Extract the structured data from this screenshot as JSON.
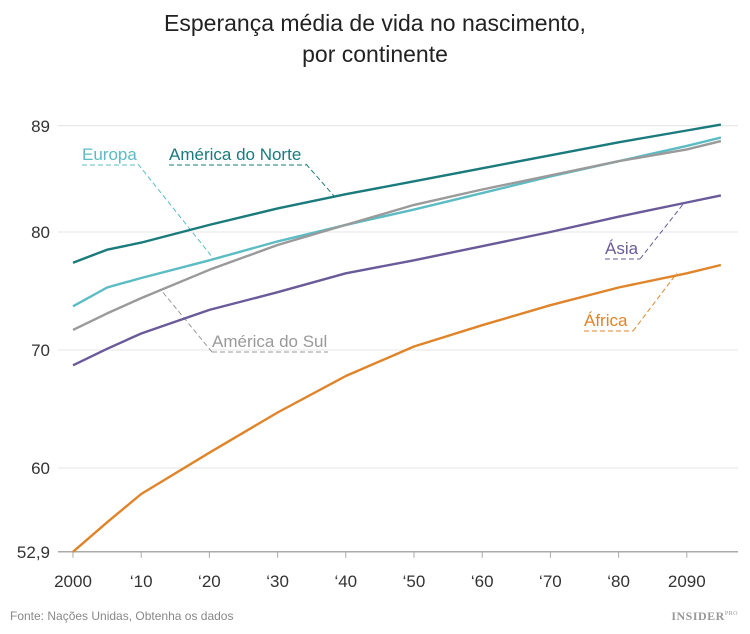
{
  "chart_data": {
    "type": "line",
    "title": "Esperança média de vida no nascimento,\npor continente",
    "title_lines": [
      "Esperança média de vida no nascimento,",
      "por continente"
    ],
    "xlabel": "",
    "ylabel": "",
    "xlim": [
      2000,
      2095
    ],
    "ylim": [
      52.9,
      89
    ],
    "x_ticks": [
      2000,
      2010,
      2020,
      2030,
      2040,
      2050,
      2060,
      2070,
      2080,
      2090
    ],
    "x_tick_labels": [
      "2000",
      "‘10",
      "‘20",
      "‘30",
      "‘40",
      "‘50",
      "‘60",
      "‘70",
      "‘80",
      "2090"
    ],
    "y_ticks": [
      52.9,
      60,
      70,
      80,
      89
    ],
    "y_tick_labels": [
      "52,9",
      "60",
      "70",
      "80",
      "89"
    ],
    "grid": true,
    "legend": "inline labels",
    "x": [
      2000,
      2005,
      2010,
      2020,
      2030,
      2040,
      2050,
      2060,
      2070,
      2080,
      2090,
      2095
    ],
    "series": [
      {
        "name": "América do Norte",
        "color": "#1a7a7c",
        "values": [
          77.4,
          78.5,
          79.1,
          80.6,
          82.0,
          83.2,
          84.3,
          85.4,
          86.5,
          87.6,
          88.6,
          89.1
        ]
      },
      {
        "name": "Europa",
        "color": "#5bbcc4",
        "values": [
          73.7,
          75.3,
          76.1,
          77.6,
          79.2,
          80.6,
          81.9,
          83.3,
          84.7,
          86.0,
          87.3,
          88.0
        ]
      },
      {
        "name": "América do Sul",
        "color": "#9a9a9a",
        "values": [
          71.7,
          73.1,
          74.4,
          76.8,
          78.9,
          80.6,
          82.3,
          83.6,
          84.8,
          86.0,
          87.0,
          87.7
        ]
      },
      {
        "name": "Ásia",
        "color": "#6a5a9a",
        "values": [
          68.7,
          70.1,
          71.4,
          73.4,
          74.9,
          76.5,
          77.6,
          78.8,
          80.0,
          81.3,
          82.5,
          83.1
        ]
      },
      {
        "name": "África",
        "color": "#e0842a",
        "values": [
          52.9,
          55.4,
          57.8,
          61.3,
          64.7,
          67.8,
          70.3,
          72.1,
          73.8,
          75.3,
          76.5,
          77.2
        ]
      }
    ]
  },
  "footer": {
    "source": "Fonte: Nações Unidas, Obtenha os dados",
    "logo": "INSIDER",
    "logo_sup": "PRO"
  }
}
